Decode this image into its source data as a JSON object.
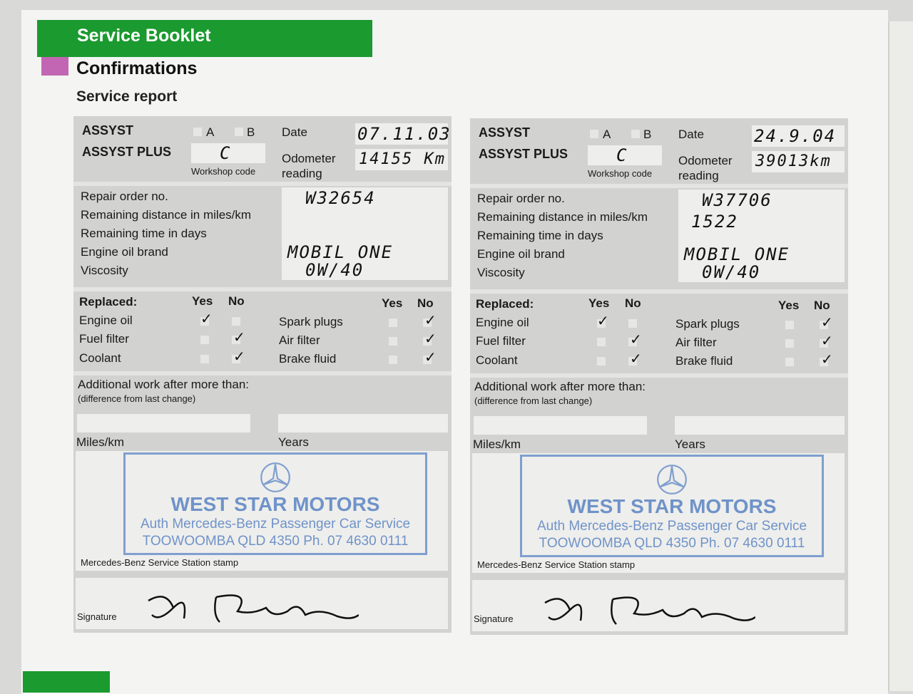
{
  "header": {
    "section": "Service Booklet",
    "title": "Confirmations",
    "subtitle": "Service report"
  },
  "labels": {
    "assyst": "ASSYST",
    "assyst_plus": "ASSYST PLUS",
    "a": "A",
    "b": "B",
    "date": "Date",
    "odometer": "Odometer",
    "reading": "reading",
    "workshop_code": "Workshop code",
    "repair_order": "Repair order no.",
    "remaining_distance": "Remaining distance in miles/km",
    "remaining_time": "Remaining time in days",
    "oil_brand": "Engine oil brand",
    "viscosity": "Viscosity",
    "replaced": "Replaced:",
    "yes": "Yes",
    "no": "No",
    "engine_oil": "Engine oil",
    "fuel_filter": "Fuel filter",
    "coolant": "Coolant",
    "spark_plugs": "Spark plugs",
    "air_filter": "Air filter",
    "brake_fluid": "Brake fluid",
    "additional": "Additional work after more than:",
    "difference": "(difference from last change)",
    "miles_km": "Miles/km",
    "years": "Years",
    "stamp_label": "Mercedes-Benz Service Station stamp",
    "signature": "Signature"
  },
  "stamp": {
    "name": "WEST STAR MOTORS",
    "line2": "Auth Mercedes-Benz Passenger Car Service",
    "line3": "TOOWOOMBA QLD 4350 Ph. 07 4630 0111"
  },
  "reports": [
    {
      "code": "C",
      "date": "07.11.03",
      "odometer": "14155 Km",
      "repair_order": "W32654",
      "remaining_distance": "",
      "oil_brand": "MOBIL ONE",
      "viscosity": "0W/40",
      "ticks": {
        "engine_oil": "yes",
        "fuel_filter": "no",
        "coolant": "no",
        "spark_plugs": "no",
        "air_filter": "no",
        "brake_fluid": "no"
      },
      "tick_glyph": "✓"
    },
    {
      "code": "C",
      "date": "24.9.04",
      "odometer": "39013km",
      "repair_order": "W37706",
      "remaining_distance": "1522",
      "oil_brand": "MOBIL ONE",
      "viscosity": "0W/40",
      "ticks": {
        "engine_oil": "yes",
        "fuel_filter": "no",
        "coolant": "no",
        "spark_plugs": "no",
        "air_filter": "no",
        "brake_fluid": "no"
      },
      "tick_glyph": "✓"
    }
  ]
}
